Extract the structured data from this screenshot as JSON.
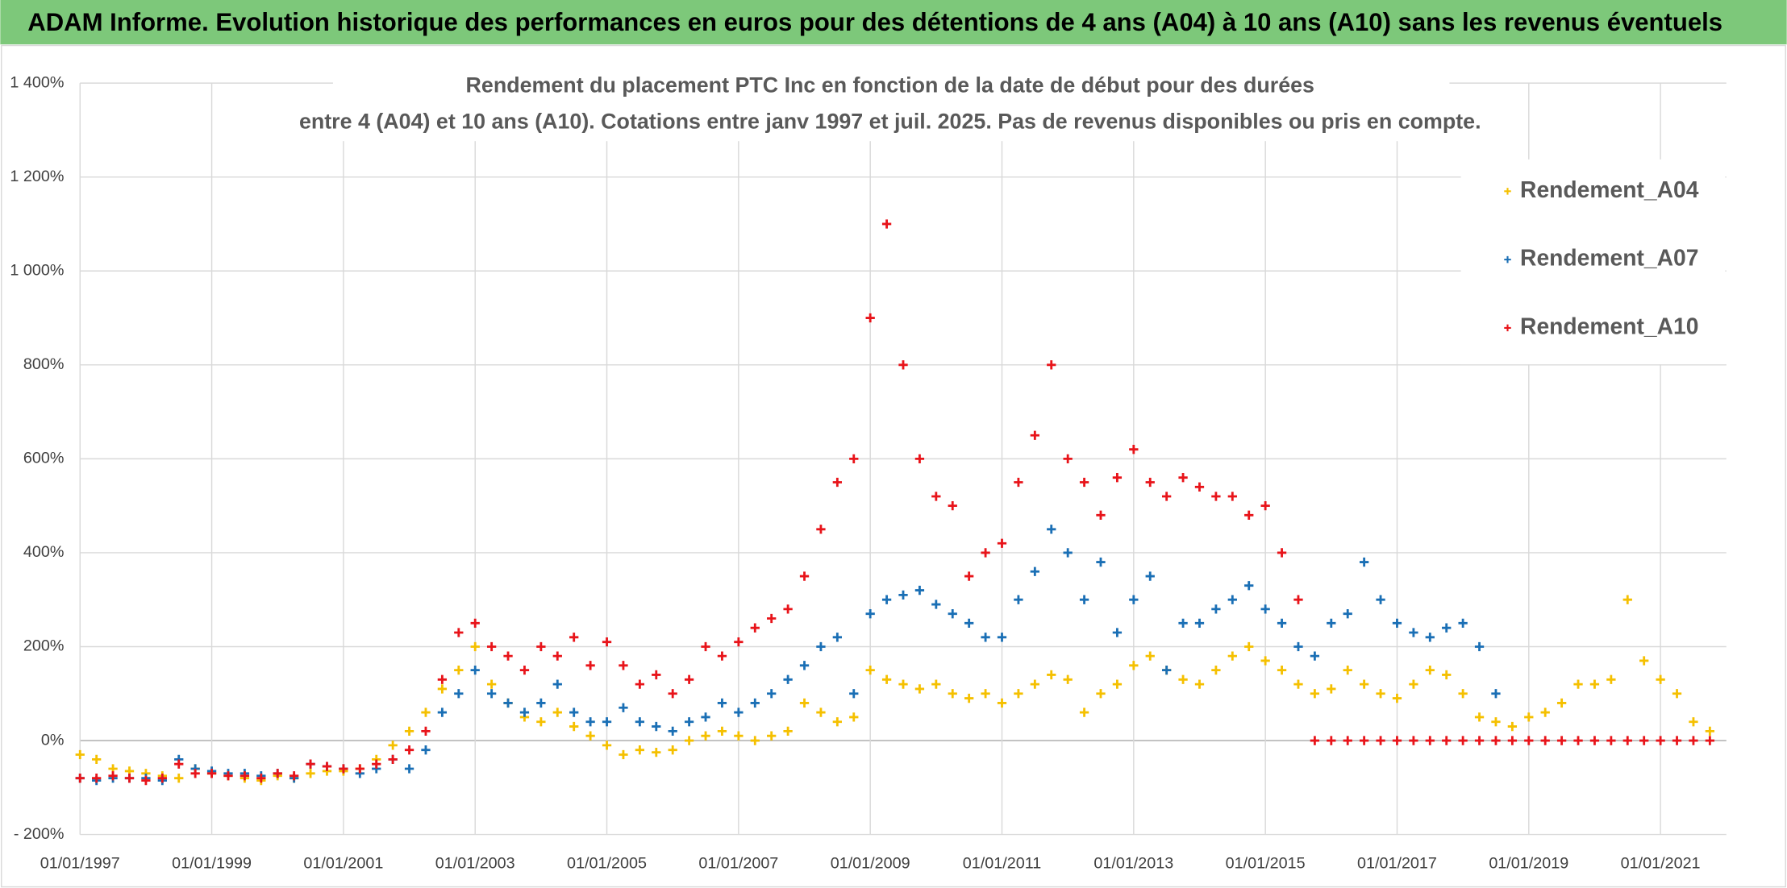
{
  "page_title": "ADAM Informe. Evolution historique des performances en euros pour des détentions de 4 ans (A04) à 10 ans (A10) sans les revenus éventuels",
  "chart_data": {
    "type": "scatter",
    "title": [
      "Rendement du placement PTC Inc en fonction de la date de début pour des durées",
      "entre 4 (A04) et 10 ans (A10). Cotations entre janv 1997 et juil. 2025. Pas de revenus disponibles ou pris en compte."
    ],
    "grid": true,
    "legend": "upper right",
    "xlim": [
      "01/01/1997",
      "01/01/2022"
    ],
    "xticks": [
      "01/01/1997",
      "01/01/1999",
      "01/01/2001",
      "01/01/2003",
      "01/01/2005",
      "01/01/2007",
      "01/01/2009",
      "01/01/2011",
      "01/01/2013",
      "01/01/2015",
      "01/01/2017",
      "01/01/2019",
      "01/01/2021"
    ],
    "ylim": [
      -200,
      1400
    ],
    "yticks": [
      {
        "value": -200,
        "label": "- 200%"
      },
      {
        "value": 0,
        "label": "0%"
      },
      {
        "value": 200,
        "label": "200%"
      },
      {
        "value": 400,
        "label": "400%"
      },
      {
        "value": 600,
        "label": "600%"
      },
      {
        "value": 800,
        "label": "800%"
      },
      {
        "value": 1000,
        "label": "1 000%"
      },
      {
        "value": 1200,
        "label": "1 200%"
      },
      {
        "value": 1400,
        "label": "1 400%"
      }
    ],
    "x": [
      "01/01/1997",
      "01/04/1997",
      "01/07/1997",
      "01/10/1997",
      "01/01/1998",
      "01/04/1998",
      "01/07/1998",
      "01/10/1998",
      "01/01/1999",
      "01/04/1999",
      "01/07/1999",
      "01/10/1999",
      "01/01/2000",
      "01/04/2000",
      "01/07/2000",
      "01/10/2000",
      "01/01/2001",
      "01/04/2001",
      "01/07/2001",
      "01/10/2001",
      "01/01/2002",
      "01/04/2002",
      "01/07/2002",
      "01/10/2002",
      "01/01/2003",
      "01/04/2003",
      "01/07/2003",
      "01/10/2003",
      "01/01/2004",
      "01/04/2004",
      "01/07/2004",
      "01/10/2004",
      "01/01/2005",
      "01/04/2005",
      "01/07/2005",
      "01/10/2005",
      "01/01/2006",
      "01/04/2006",
      "01/07/2006",
      "01/10/2006",
      "01/01/2007",
      "01/04/2007",
      "01/07/2007",
      "01/10/2007",
      "01/01/2008",
      "01/04/2008",
      "01/07/2008",
      "01/10/2008",
      "01/01/2009",
      "01/04/2009",
      "01/07/2009",
      "01/10/2009",
      "01/01/2010",
      "01/04/2010",
      "01/07/2010",
      "01/10/2010",
      "01/01/2011",
      "01/04/2011",
      "01/07/2011",
      "01/10/2011",
      "01/01/2012",
      "01/04/2012",
      "01/07/2012",
      "01/10/2012",
      "01/01/2013",
      "01/04/2013",
      "01/07/2013",
      "01/10/2013",
      "01/01/2014",
      "01/04/2014",
      "01/07/2014",
      "01/10/2014",
      "01/01/2015",
      "01/04/2015",
      "01/07/2015",
      "01/10/2015",
      "01/01/2016",
      "01/04/2016",
      "01/07/2016",
      "01/10/2016",
      "01/01/2017",
      "01/04/2017",
      "01/07/2017",
      "01/10/2017",
      "01/01/2018",
      "01/04/2018",
      "01/07/2018",
      "01/10/2018",
      "01/01/2019",
      "01/04/2019",
      "01/07/2019",
      "01/10/2019",
      "01/01/2020",
      "01/04/2020",
      "01/07/2020",
      "01/10/2020",
      "01/01/2021",
      "01/04/2021",
      "01/07/2021",
      "01/10/2021"
    ],
    "series": [
      {
        "name": "Rendement_A04",
        "color": "#f5c000",
        "values": [
          -30,
          -40,
          -60,
          -65,
          -70,
          -75,
          -80,
          -60,
          -70,
          -75,
          -80,
          -85,
          -75,
          -80,
          -70,
          -65,
          -65,
          -60,
          -40,
          -10,
          20,
          60,
          110,
          150,
          200,
          120,
          80,
          50,
          40,
          60,
          30,
          10,
          -10,
          -30,
          -20,
          -25,
          -20,
          0,
          10,
          20,
          10,
          0,
          10,
          20,
          80,
          60,
          40,
          50,
          150,
          130,
          120,
          110,
          120,
          100,
          90,
          100,
          80,
          100,
          120,
          140,
          130,
          60,
          100,
          120,
          160,
          180,
          150,
          130,
          120,
          150,
          180,
          200,
          170,
          150,
          120,
          100,
          110,
          150,
          120,
          100,
          90,
          120,
          150,
          140,
          100,
          50,
          40,
          30,
          50,
          60,
          80,
          120,
          120,
          130,
          300,
          170,
          130,
          100,
          40,
          20
        ]
      },
      {
        "name": "Rendement_A07",
        "color": "#1a6fb5",
        "values": [
          -80,
          -85,
          -80,
          -80,
          -80,
          -85,
          -40,
          -60,
          -65,
          -70,
          -70,
          -75,
          -70,
          -80,
          -50,
          -55,
          -60,
          -70,
          -60,
          -40,
          -60,
          -20,
          60,
          100,
          150,
          100,
          80,
          60,
          80,
          120,
          60,
          40,
          40,
          70,
          40,
          30,
          20,
          40,
          50,
          80,
          60,
          80,
          100,
          130,
          160,
          200,
          220,
          100,
          270,
          300,
          310,
          320,
          290,
          270,
          250,
          220,
          220,
          300,
          360,
          450,
          400,
          300,
          380,
          230,
          300,
          350,
          150,
          250,
          250,
          280,
          300,
          330,
          280,
          250,
          200,
          180,
          250,
          270,
          380,
          300,
          250,
          230,
          220,
          240,
          250,
          200,
          100,
          null,
          null,
          null,
          null,
          null,
          null,
          null,
          null,
          null,
          null,
          null,
          null,
          null
        ]
      },
      {
        "name": "Rendement_A10",
        "color": "#e8141a",
        "values": [
          -80,
          -80,
          -75,
          -80,
          -85,
          -80,
          -50,
          -70,
          -70,
          -75,
          -75,
          -80,
          -70,
          -75,
          -50,
          -55,
          -60,
          -60,
          -50,
          -40,
          -20,
          20,
          130,
          230,
          250,
          200,
          180,
          150,
          200,
          180,
          220,
          160,
          210,
          160,
          120,
          140,
          100,
          130,
          200,
          180,
          210,
          240,
          260,
          280,
          350,
          450,
          550,
          600,
          900,
          1100,
          800,
          600,
          520,
          500,
          350,
          400,
          420,
          550,
          650,
          800,
          600,
          550,
          480,
          560,
          620,
          550,
          520,
          560,
          540,
          520,
          520,
          480,
          500,
          400,
          300,
          0,
          0,
          0,
          0,
          0,
          0,
          0,
          0,
          0,
          0,
          0,
          0,
          0,
          0,
          0,
          0,
          0,
          0,
          0,
          0,
          0,
          0,
          0,
          0,
          0
        ]
      }
    ]
  }
}
